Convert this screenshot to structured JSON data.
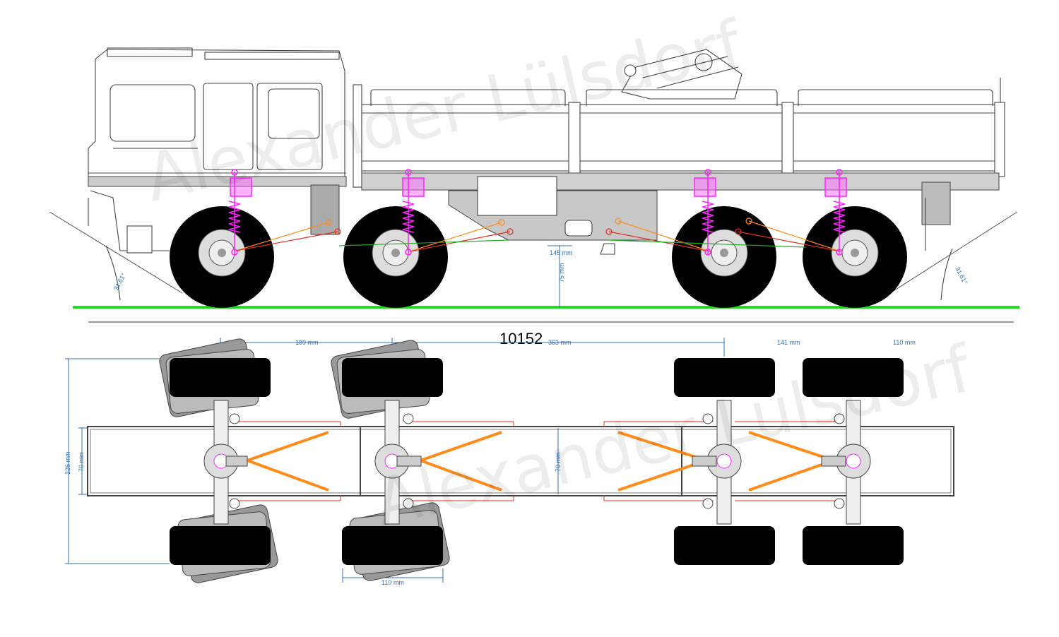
{
  "drawing": {
    "total_length_label": "10152",
    "watermark_text": "Alexander Lülsdorf",
    "ground_color": "#22dd22",
    "shock_color": "#ff22ff",
    "upper_link_color": "#ff8c1a",
    "lower_link_color": "#e03020",
    "dimension_color": "#2f6fb3"
  },
  "side_view": {
    "approach_angle": "31,61°",
    "departure_angle": "31,61°",
    "underbody_clearance": "145 mm",
    "ground_clearance": "75 mm"
  },
  "top_view": {
    "axle_spacing_1": "189 mm",
    "axle_spacing_2": "363 mm",
    "axle_spacing_3": "141 mm",
    "axle_spacing_4": "110 mm",
    "overall_width": "225 mm",
    "frame_width_left": "70 mm",
    "frame_width_center": "70 mm",
    "tire_width": "110 mm"
  }
}
